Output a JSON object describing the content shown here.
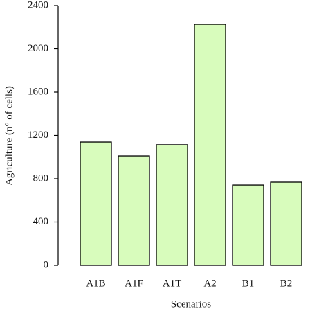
{
  "chart_data": {
    "type": "bar",
    "x_label": "Scenarios",
    "y_label": "Agriculture (n° of cells)",
    "categories": [
      "A1B",
      "A1F",
      "A1T",
      "A2",
      "B1",
      "B2"
    ],
    "values": [
      1139,
      1011,
      1114,
      2227,
      742,
      768
    ],
    "color": "#d8fcbc",
    "ylim": [
      0,
      2400
    ],
    "yticks": [
      0,
      400,
      800,
      1200,
      1600,
      2000,
      2400
    ],
    "grid": false
  }
}
